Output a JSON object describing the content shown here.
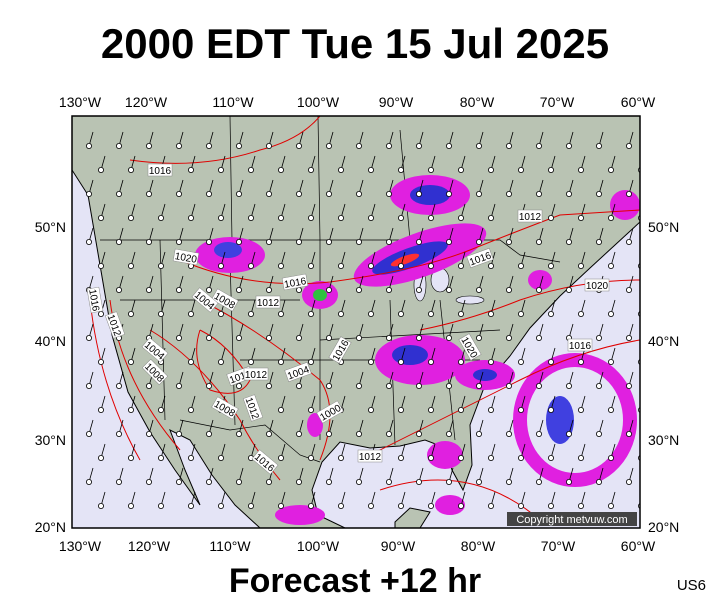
{
  "header": {
    "title": "2000 EDT Tue 15 Jul 2025"
  },
  "axes": {
    "top": [
      "130°W",
      "120°W",
      "110°W",
      "100°W",
      "90°W",
      "80°W",
      "70°W",
      "60°W"
    ],
    "bottom": [
      "130°W",
      "120°W",
      "110°W",
      "100°W",
      "90°W",
      "80°W",
      "70°W",
      "60°W"
    ],
    "left": [
      "50°N",
      "40°N",
      "30°N",
      "20°N"
    ],
    "right": [
      "50°N",
      "40°N",
      "30°N",
      "20°N"
    ]
  },
  "isobar_labels": [
    "1016",
    "1020",
    "1016",
    "1008",
    "1012",
    "1004",
    "1016",
    "1012",
    "1004",
    "1008",
    "1004",
    "1012",
    "1012",
    "1008",
    "1012",
    "1000",
    "1016",
    "1012",
    "1016",
    "1012",
    "1016",
    "1020",
    "1016",
    "1020"
  ],
  "copyright": "Copyright metvuw.com",
  "footer": {
    "forecast": "Forecast +12 hr",
    "id": "US6"
  }
}
